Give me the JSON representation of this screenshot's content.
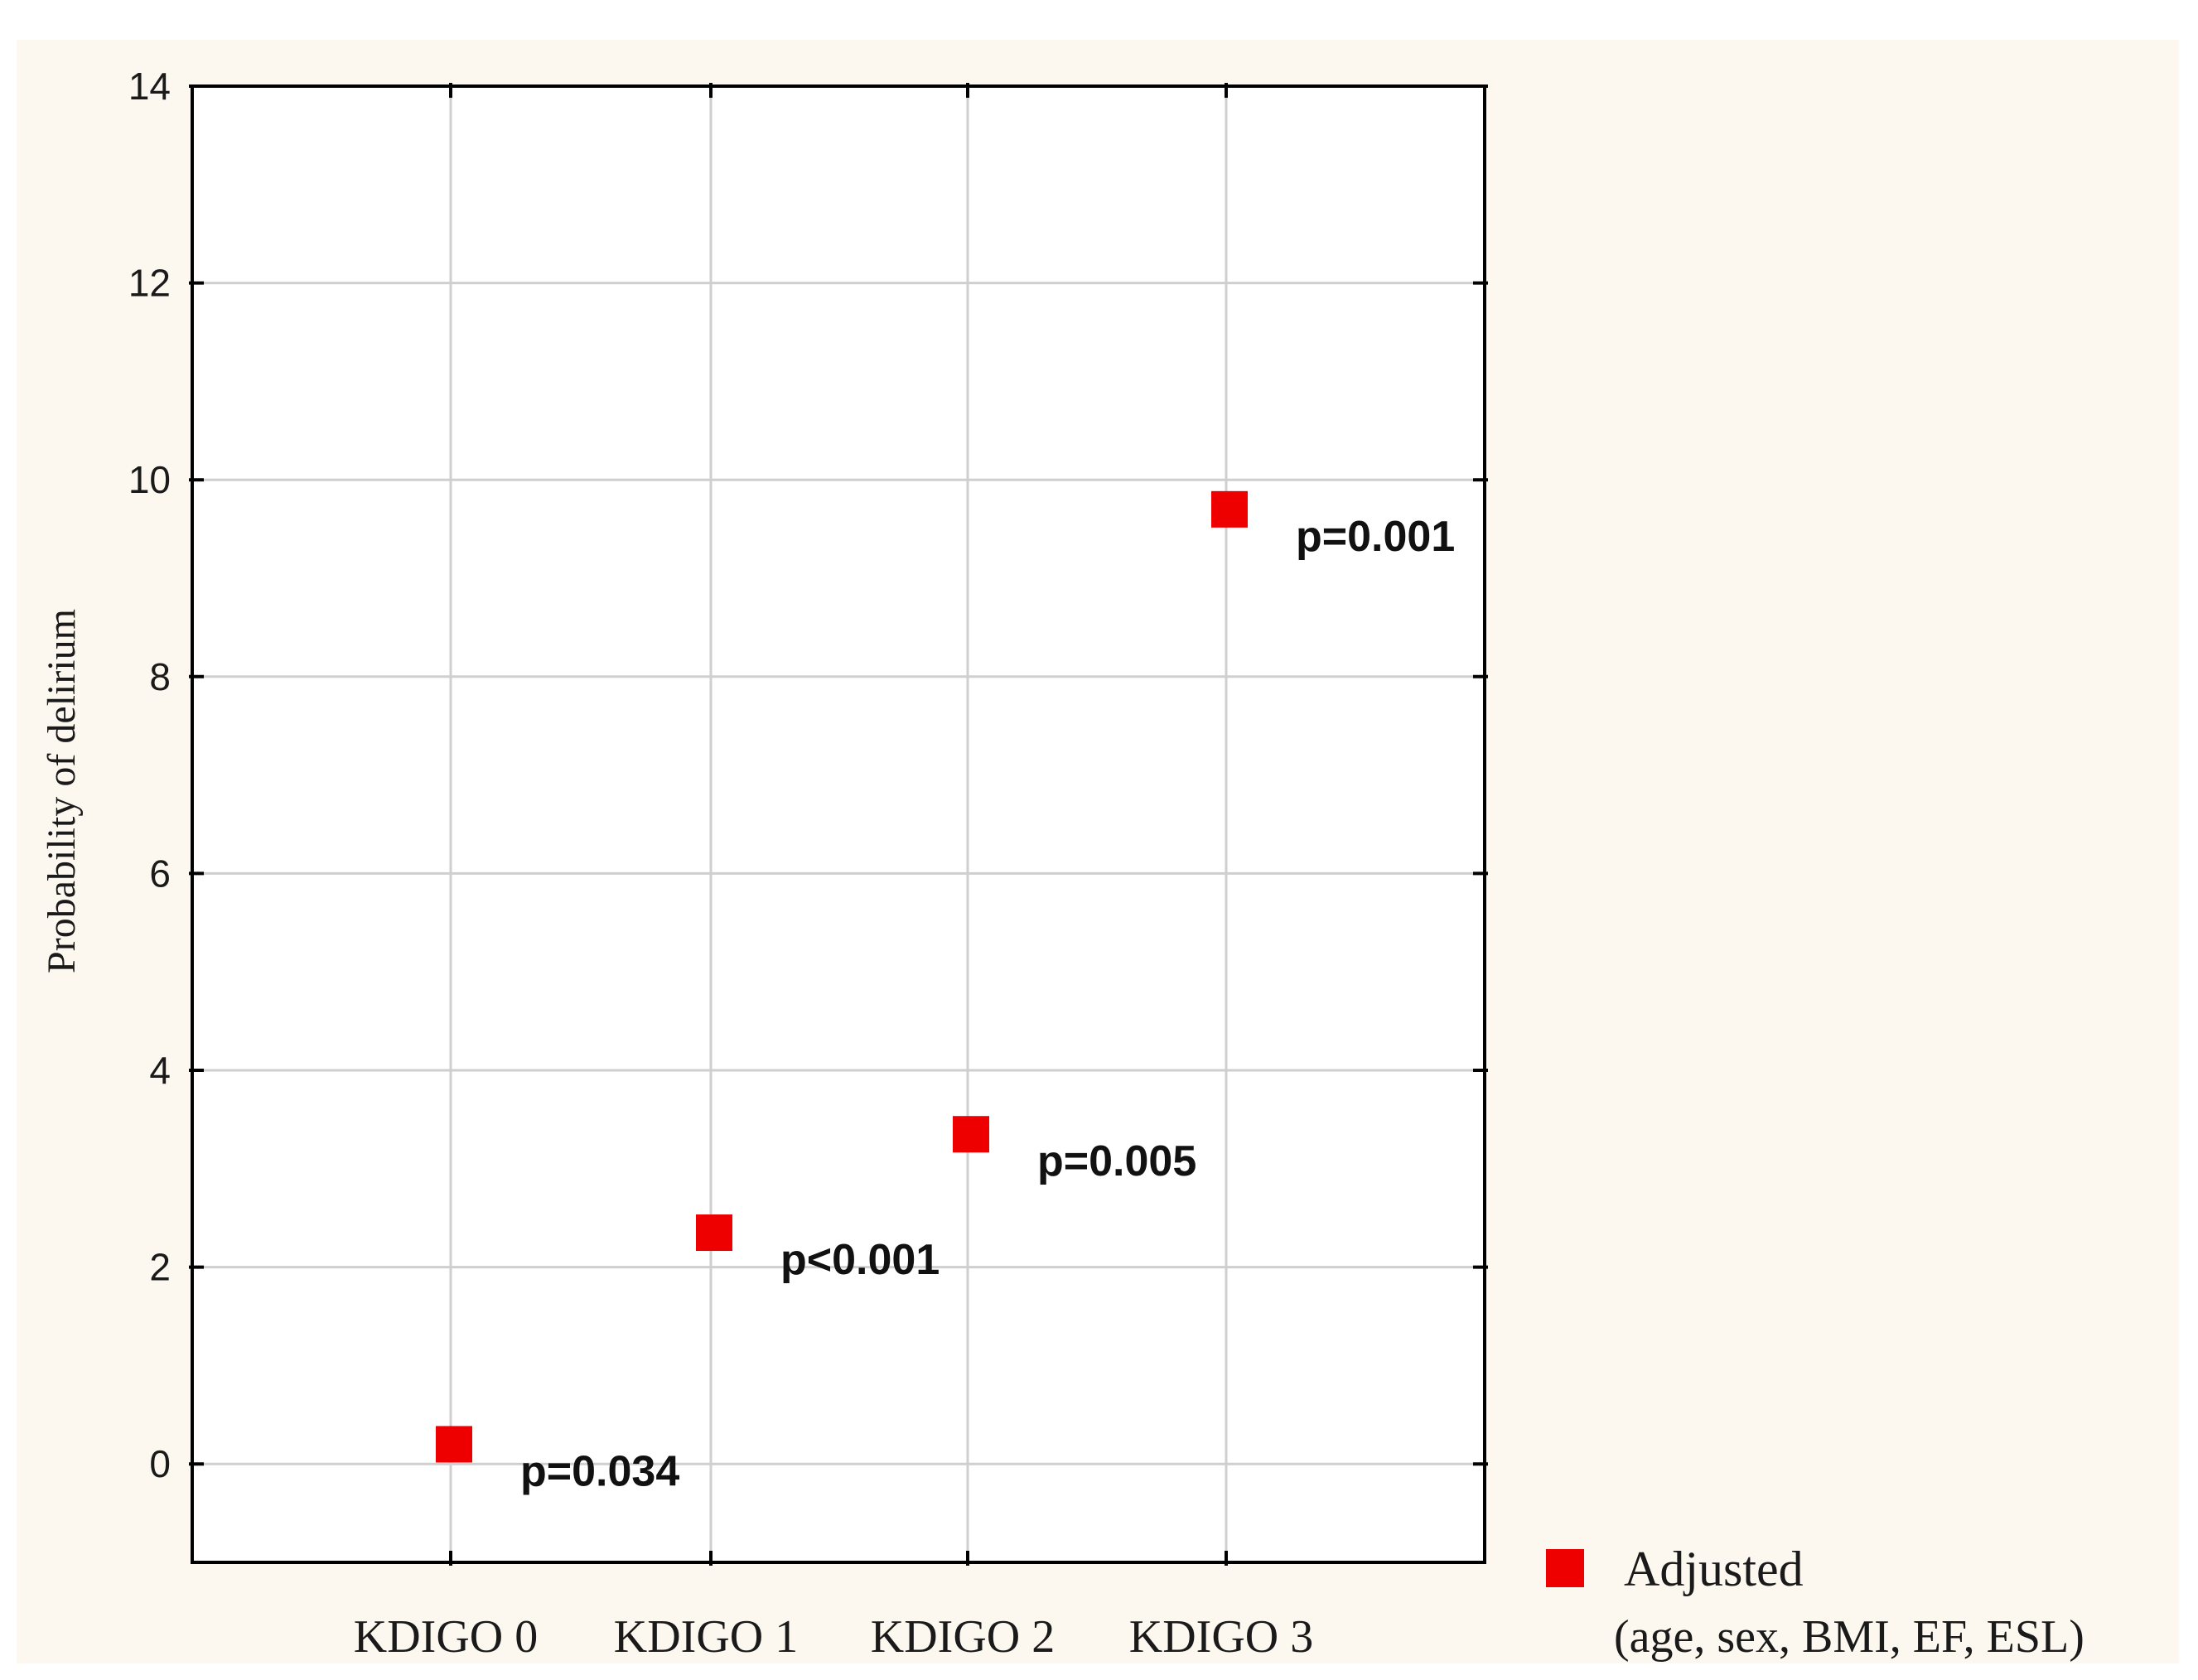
{
  "chart_data": {
    "type": "scatter",
    "title": "",
    "xlabel": "",
    "ylabel": "Probability of delirium",
    "categories": [
      "KDIGO 0",
      "KDIGO 1",
      "KDIGO 2",
      "KDIGO 3"
    ],
    "ylim": [
      -1,
      14
    ],
    "yticks": [
      0,
      2,
      4,
      6,
      8,
      10,
      12,
      14
    ],
    "grid": true,
    "legend_position": "bottom-right outside",
    "series": [
      {
        "name": "Adjusted",
        "name_detail": "(age, sex, BMI, EF, ESL)",
        "color": "#ee0000",
        "marker": "square",
        "values": [
          0.2,
          2.35,
          3.35,
          9.7
        ],
        "annotations": [
          "p=0.034",
          "p<0.001",
          "p=0.005",
          "p=0.001"
        ]
      }
    ]
  }
}
